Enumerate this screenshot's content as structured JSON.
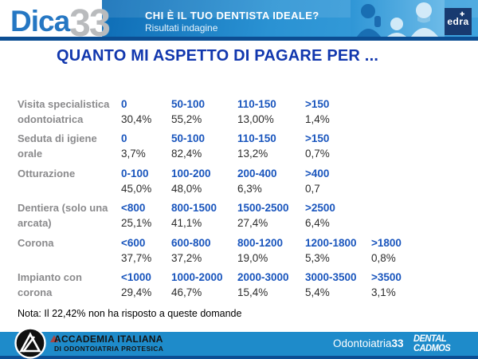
{
  "header": {
    "logo_dica": "Dica",
    "logo_33": "33",
    "title": "CHI È IL TUO DENTISTA IDEALE?",
    "subtitle": "Risultati indagine",
    "edra_label": "edra"
  },
  "chart_data": {
    "type": "table",
    "title": "QUANTO MI ASPETTO DI PAGARE PER ...",
    "note": "Nota: Il 22,42% non ha risposto a queste domande",
    "rows": [
      {
        "label": "Visita specialistica odontoiatrica",
        "cells": [
          {
            "range": "0",
            "value": "30,4%"
          },
          {
            "range": "50-100",
            "value": "55,2%"
          },
          {
            "range": "110-150",
            "value": "13,00%"
          },
          {
            "range": ">150",
            "value": "1,4%"
          }
        ]
      },
      {
        "label": "Seduta di igiene orale",
        "cells": [
          {
            "range": "0",
            "value": "3,7%"
          },
          {
            "range": "50-100",
            "value": "82,4%"
          },
          {
            "range": "110-150",
            "value": "13,2%"
          },
          {
            "range": ">150",
            "value": "0,7%"
          }
        ]
      },
      {
        "label": "Otturazione",
        "cells": [
          {
            "range": "0-100",
            "value": "45,0%"
          },
          {
            "range": "100-200",
            "value": "48,0%"
          },
          {
            "range": "200-400",
            "value": "6,3%"
          },
          {
            "range": ">400",
            "value": "0,7"
          }
        ]
      },
      {
        "label": "Dentiera (solo una arcata)",
        "cells": [
          {
            "range": "<800",
            "value": "25,1%"
          },
          {
            "range": "800-1500",
            "value": "41,1%"
          },
          {
            "range": "1500-2500",
            "value": "27,4%"
          },
          {
            "range": ">2500",
            "value": "6,4%"
          }
        ]
      },
      {
        "label": "Corona",
        "cells": [
          {
            "range": "<600",
            "value": "37,7%"
          },
          {
            "range": "600-800",
            "value": "37,2%"
          },
          {
            "range": "800-1200",
            "value": "19,0%"
          },
          {
            "range": "1200-1800",
            "value": "5,3%"
          },
          {
            "range": ">1800",
            "value": "0,8%"
          }
        ]
      },
      {
        "label": "Impianto con corona",
        "cells": [
          {
            "range": "<1000",
            "value": "29,4%"
          },
          {
            "range": "1000-2000",
            "value": "46,7%"
          },
          {
            "range": "2000-3000",
            "value": "15,4%"
          },
          {
            "range": "3000-3500",
            "value": "5,4%"
          },
          {
            "range": ">3500",
            "value": "3,1%"
          }
        ]
      }
    ]
  },
  "footer": {
    "accademia_line1": "ACCADEMIA ITALIANA",
    "accademia_line2": "DI ODONTOIATRIA PROTESICA",
    "odontoiatria": "Odontoiatria",
    "odontoiatria_bold": "33",
    "dental_line1": "DENTAL",
    "dental_line2": "CADMOS"
  },
  "colors": {
    "title_blue": "#1137ae",
    "range_blue": "#1955bd",
    "band_blue": "#2a92d3",
    "footer_blue": "#1e8bca",
    "navy_line": "#0c4e93",
    "label_gray": "#8a8a8c"
  }
}
